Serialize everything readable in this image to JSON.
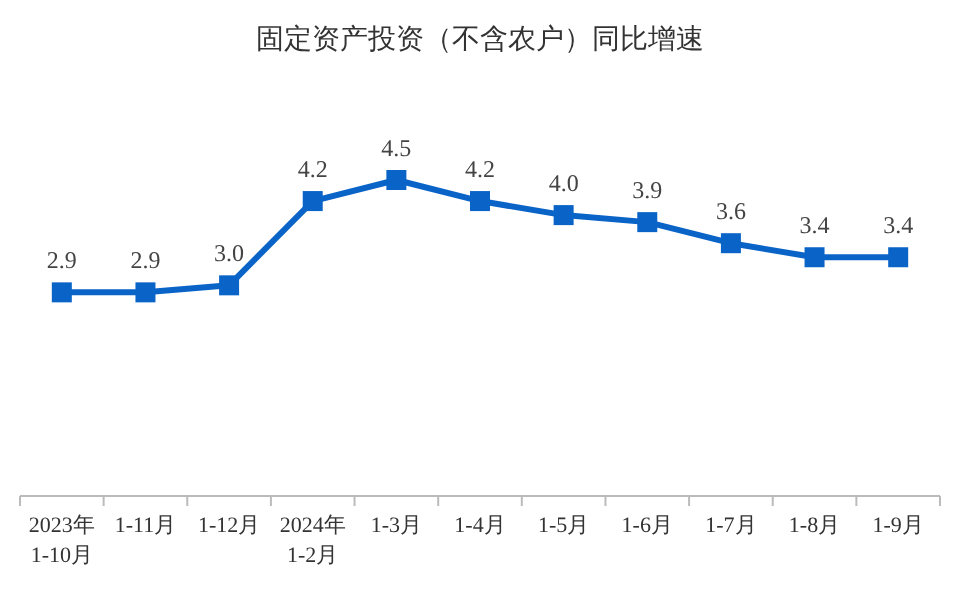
{
  "chart_data": {
    "type": "line",
    "title": "固定资产投资（不含农户）同比增速",
    "categories": [
      "2023年\n1-10月",
      "1-11月",
      "1-12月",
      "2024年\n1-2月",
      "1-3月",
      "1-4月",
      "1-5月",
      "1-6月",
      "1-7月",
      "1-8月",
      "1-9月"
    ],
    "values": [
      2.9,
      2.9,
      3.0,
      4.2,
      4.5,
      4.2,
      4.0,
      3.9,
      3.6,
      3.4,
      3.4
    ],
    "value_labels": [
      "2.9",
      "2.9",
      "3.0",
      "4.2",
      "4.5",
      "4.2",
      "4.0",
      "3.9",
      "3.6",
      "3.4",
      "3.4"
    ],
    "color": "#0a64c8",
    "marker": "square"
  }
}
